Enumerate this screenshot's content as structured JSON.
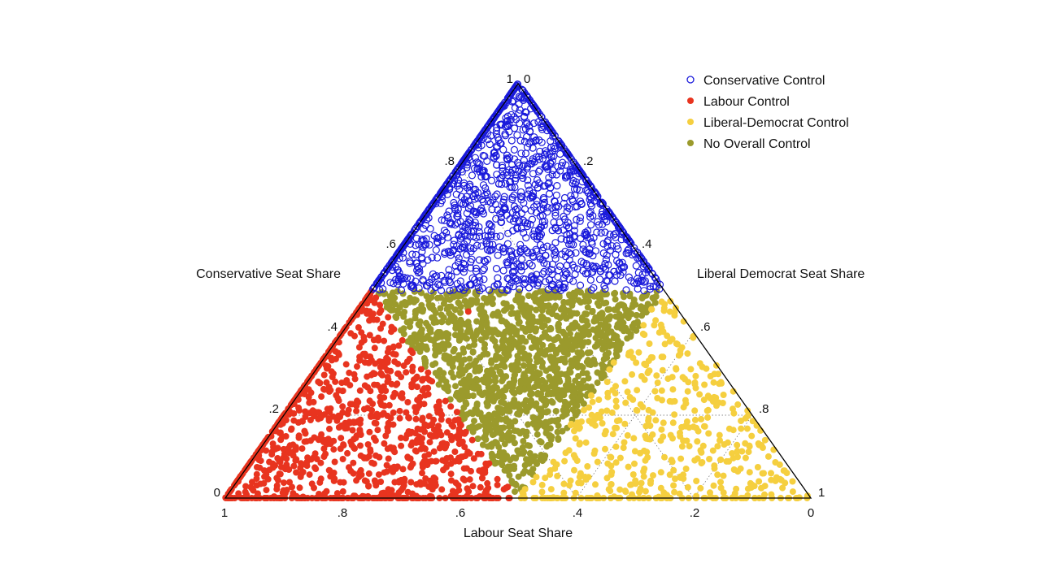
{
  "chart_data": {
    "type": "scatter",
    "subtype": "ternary",
    "axes": {
      "bottom": {
        "label": "Labour Seat Share",
        "ticks": [
          {
            "value": 1,
            "text": "1"
          },
          {
            "value": 0.8,
            "text": ".8"
          },
          {
            "value": 0.6,
            "text": ".6"
          },
          {
            "value": 0.4,
            "text": ".4"
          },
          {
            "value": 0.2,
            "text": ".2"
          },
          {
            "value": 0,
            "text": "0"
          }
        ]
      },
      "left": {
        "label": "Conservative Seat Share",
        "ticks": [
          {
            "value": 0,
            "text": "0"
          },
          {
            "value": 0.2,
            "text": ".2"
          },
          {
            "value": 0.4,
            "text": ".4"
          },
          {
            "value": 0.6,
            "text": ".6"
          },
          {
            "value": 0.8,
            "text": ".8"
          },
          {
            "value": 1,
            "text": "1"
          }
        ]
      },
      "right": {
        "label": "Liberal Democrat Seat Share",
        "ticks": [
          {
            "value": 0,
            "text": "0"
          },
          {
            "value": 0.2,
            "text": ".2"
          },
          {
            "value": 0.4,
            "text": ".4"
          },
          {
            "value": 0.6,
            "text": ".6"
          },
          {
            "value": 0.8,
            "text": ".8"
          },
          {
            "value": 1,
            "text": "1"
          }
        ]
      }
    },
    "legend_position": "top-right",
    "series": [
      {
        "name": "Conservative Control",
        "color": "#1a1adb",
        "marker": "hollow-circle",
        "region": "Conservative share above 0.5",
        "approx_count": 1500
      },
      {
        "name": "Labour Control",
        "color": "#e8341f",
        "marker": "filled-circle",
        "region": "Labour share above 0.5 (one point in the Conservative zone)",
        "approx_count": 1100
      },
      {
        "name": "Liberal-Democrat Control",
        "color": "#f5cf3f",
        "marker": "filled-circle",
        "region": "Liberal Democrat share above 0.5",
        "approx_count": 500
      },
      {
        "name": "No Overall Control",
        "color": "#9b9a2c",
        "marker": "filled-circle",
        "region": "no party above 0.5",
        "approx_count": 1600
      }
    ]
  }
}
